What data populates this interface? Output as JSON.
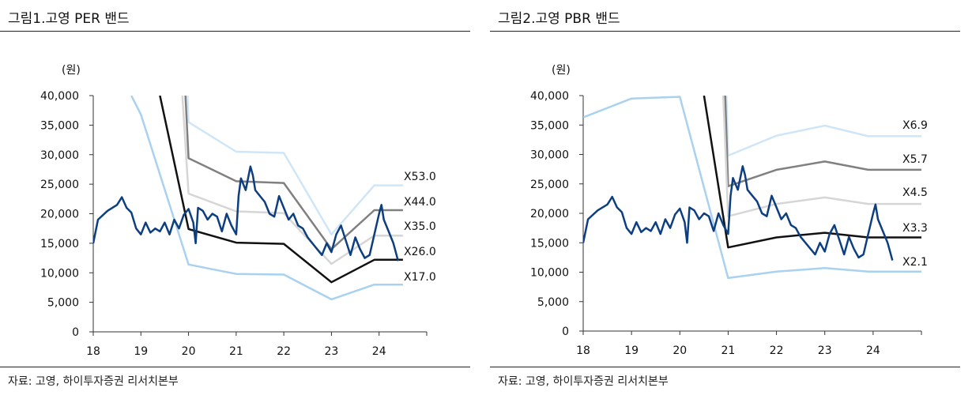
{
  "panels": [
    {
      "title": "그림1.고영 PER 밴드",
      "source": "자료: 고영, 하이투자증권 리서치본부"
    },
    {
      "title": "그림2.고영 PBR 밴드",
      "source": "자료: 고영, 하이투자증권 리서치본부"
    }
  ],
  "chart_data": [
    {
      "type": "line",
      "title": "그림1.고영 PER 밴드",
      "ylabel": "(원)",
      "xlabel": "",
      "xlim": [
        18,
        25
      ],
      "ylim": [
        0,
        40000
      ],
      "yticks": [
        0,
        5000,
        10000,
        15000,
        20000,
        25000,
        30000,
        35000,
        40000
      ],
      "ytick_labels": [
        "0",
        "5,000",
        "10,000",
        "15,000",
        "20,000",
        "25,000",
        "30,000",
        "35,000",
        "40,000"
      ],
      "xticks": [
        18,
        19,
        20,
        21,
        22,
        23,
        24
      ],
      "xtick_labels": [
        "18",
        "19",
        "20",
        "21",
        "22",
        "23",
        "24"
      ],
      "colors": {
        "price": "#0d3f80",
        "band1": "#a9d1f0",
        "band2": "#111111",
        "band3": "#d6d6d6",
        "band4": "#808080",
        "band5": "#cfe6f8"
      },
      "bands": [
        {
          "name": "X53.0",
          "color_key": "band5",
          "x": [
            19.8,
            20.0,
            21.0,
            22.0,
            23.0,
            23.9,
            24.5
          ],
          "y": [
            75000,
            35500,
            30500,
            30300,
            16500,
            24800,
            24800
          ]
        },
        {
          "name": "X44.0",
          "color_key": "band4",
          "x": [
            19.8,
            20.0,
            21.0,
            22.0,
            23.0,
            23.9,
            24.5
          ],
          "y": [
            62000,
            29400,
            25500,
            25200,
            14000,
            20600,
            20600
          ]
        },
        {
          "name": "X35.0",
          "color_key": "band3",
          "x": [
            19.8,
            20.0,
            21.0,
            22.0,
            23.0,
            23.9,
            24.5
          ],
          "y": [
            49000,
            23400,
            20400,
            20100,
            11500,
            16300,
            16300
          ]
        },
        {
          "name": "X26.0",
          "color_key": "band2",
          "x": [
            19.4,
            20.0,
            21.0,
            22.0,
            23.0,
            23.9,
            24.5
          ],
          "y": [
            40000,
            17400,
            15100,
            14900,
            8400,
            12200,
            12200
          ]
        },
        {
          "name": "X17.0",
          "color_key": "band1",
          "x": [
            18.8,
            19.0,
            20.0,
            21.0,
            22.0,
            23.0,
            23.9,
            24.5
          ],
          "y": [
            40000,
            36800,
            11400,
            9800,
            9700,
            5500,
            8000,
            8000
          ]
        }
      ],
      "price": {
        "name": "주가",
        "color_key": "price",
        "x": [
          18.0,
          18.1,
          18.3,
          18.5,
          18.6,
          18.7,
          18.8,
          18.9,
          19.0,
          19.1,
          19.2,
          19.3,
          19.4,
          19.5,
          19.6,
          19.7,
          19.8,
          19.9,
          20.0,
          20.1,
          20.15,
          20.2,
          20.3,
          20.4,
          20.5,
          20.6,
          20.7,
          20.8,
          20.9,
          21.0,
          21.05,
          21.1,
          21.2,
          21.3,
          21.35,
          21.4,
          21.5,
          21.6,
          21.7,
          21.8,
          21.9,
          22.0,
          22.1,
          22.2,
          22.3,
          22.4,
          22.5,
          22.6,
          22.7,
          22.8,
          22.9,
          23.0,
          23.1,
          23.2,
          23.3,
          23.4,
          23.5,
          23.6,
          23.7,
          23.8,
          23.9,
          24.0,
          24.05,
          24.1,
          24.2,
          24.3,
          24.35,
          24.4
        ],
        "y": [
          15000,
          19000,
          20500,
          21500,
          22800,
          21000,
          20200,
          17500,
          16500,
          18500,
          16800,
          17500,
          17000,
          18500,
          16500,
          19000,
          17500,
          19800,
          20800,
          18500,
          15000,
          21000,
          20500,
          19000,
          20000,
          19500,
          17000,
          20000,
          18000,
          16500,
          23000,
          26000,
          24000,
          28000,
          26500,
          24000,
          23000,
          22000,
          20000,
          19500,
          23000,
          21000,
          19000,
          20000,
          18000,
          17500,
          16000,
          15000,
          14000,
          13000,
          15000,
          13500,
          16500,
          18000,
          15500,
          13000,
          16000,
          14000,
          12500,
          13000,
          16500,
          20000,
          21500,
          19000,
          17000,
          15000,
          13500,
          12000
        ]
      }
    },
    {
      "type": "line",
      "title": "그림2.고영 PBR 밴드",
      "ylabel": "(원)",
      "xlabel": "",
      "xlim": [
        18,
        25
      ],
      "ylim": [
        0,
        40000
      ],
      "yticks": [
        0,
        5000,
        10000,
        15000,
        20000,
        25000,
        30000,
        35000,
        40000
      ],
      "ytick_labels": [
        "0",
        "5,000",
        "10,000",
        "15,000",
        "20,000",
        "25,000",
        "30,000",
        "35,000",
        "40,000"
      ],
      "xticks": [
        18,
        19,
        20,
        21,
        22,
        23,
        24
      ],
      "xtick_labels": [
        "18",
        "19",
        "20",
        "21",
        "22",
        "23",
        "24"
      ],
      "colors": {
        "price": "#0d3f80",
        "band1": "#a9d1f0",
        "band2": "#111111",
        "band3": "#d6d6d6",
        "band4": "#808080",
        "band5": "#cfe6f8"
      },
      "bands": [
        {
          "name": "X6.9",
          "color_key": "band5",
          "x": [
            20.8,
            21.0,
            22.0,
            23.0,
            23.9,
            25.0
          ],
          "y": [
            90000,
            29800,
            33200,
            34900,
            33100,
            33100
          ]
        },
        {
          "name": "X5.7",
          "color_key": "band4",
          "x": [
            20.8,
            21.0,
            22.0,
            23.0,
            23.9,
            25.0
          ],
          "y": [
            75000,
            24600,
            27400,
            28800,
            27400,
            27400
          ]
        },
        {
          "name": "X4.5",
          "color_key": "band3",
          "x": [
            20.8,
            21.0,
            22.0,
            23.0,
            23.9,
            25.0
          ],
          "y": [
            60000,
            19500,
            21600,
            22700,
            21600,
            21600
          ]
        },
        {
          "name": "X3.3",
          "color_key": "band2",
          "x": [
            20.5,
            21.0,
            22.0,
            23.0,
            23.9,
            25.0
          ],
          "y": [
            40000,
            14200,
            15900,
            16700,
            15900,
            15900
          ]
        },
        {
          "name": "X2.1",
          "color_key": "band1",
          "x": [
            18.0,
            19.0,
            20.0,
            21.0,
            22.0,
            23.0,
            23.9,
            25.0
          ],
          "y": [
            36300,
            39500,
            39800,
            9000,
            10100,
            10700,
            10100,
            10100
          ]
        }
      ],
      "price": {
        "name": "주가",
        "color_key": "price",
        "x": [
          18.0,
          18.1,
          18.3,
          18.5,
          18.6,
          18.7,
          18.8,
          18.9,
          19.0,
          19.1,
          19.2,
          19.3,
          19.4,
          19.5,
          19.6,
          19.7,
          19.8,
          19.9,
          20.0,
          20.1,
          20.15,
          20.2,
          20.3,
          20.4,
          20.5,
          20.6,
          20.7,
          20.8,
          20.9,
          21.0,
          21.05,
          21.1,
          21.2,
          21.3,
          21.35,
          21.4,
          21.5,
          21.6,
          21.7,
          21.8,
          21.9,
          22.0,
          22.1,
          22.2,
          22.3,
          22.4,
          22.5,
          22.6,
          22.7,
          22.8,
          22.9,
          23.0,
          23.1,
          23.2,
          23.3,
          23.4,
          23.5,
          23.6,
          23.7,
          23.8,
          23.9,
          24.0,
          24.05,
          24.1,
          24.2,
          24.3,
          24.35,
          24.4
        ],
        "y": [
          15000,
          19000,
          20500,
          21500,
          22800,
          21000,
          20200,
          17500,
          16500,
          18500,
          16800,
          17500,
          17000,
          18500,
          16500,
          19000,
          17500,
          19800,
          20800,
          18500,
          15000,
          21000,
          20500,
          19000,
          20000,
          19500,
          17000,
          20000,
          18000,
          16500,
          23000,
          26000,
          24000,
          28000,
          26500,
          24000,
          23000,
          22000,
          20000,
          19500,
          23000,
          21000,
          19000,
          20000,
          18000,
          17500,
          16000,
          15000,
          14000,
          13000,
          15000,
          13500,
          16500,
          18000,
          15500,
          13000,
          16000,
          14000,
          12500,
          13000,
          16500,
          20000,
          21500,
          19000,
          17000,
          15000,
          13500,
          12000
        ]
      }
    }
  ]
}
